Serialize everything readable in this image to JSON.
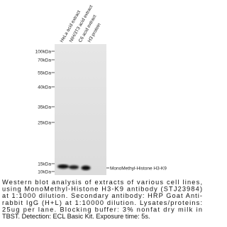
{
  "lanes": [
    "HeLa acid extract",
    "NIH/3T3 acid extract",
    "C6 acid extract",
    "H3 protein"
  ],
  "markers": [
    "100kDa",
    "70kDa",
    "55kDa",
    "40kDa",
    "35kDa",
    "25kDa",
    "15kDa",
    "10kDa"
  ],
  "band_label": "MonoMethyl-Histone H3-K9",
  "caption": [
    "Western blot analysis of extracts of various cell lines,",
    "using MonoMethyl-Histone H3-K9 antibody (STJ23984)",
    "at 1:1000 dilution. Secondary antibody: HRP Goat Anti-",
    "rabbit IgG (H+L) at 1:10000 dilution. Lysates/proteins:",
    "25ug per lane. Blocking buffer: 3% nonfat dry milk in",
    "TBST. Detection: ECL Basic Kit. Exposure time: 5s."
  ]
}
